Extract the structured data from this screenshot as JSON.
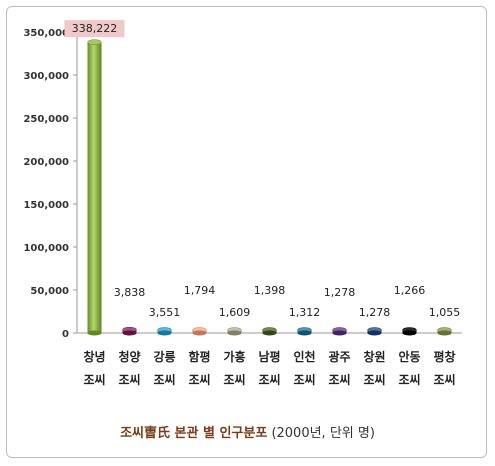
{
  "caption": {
    "main": "조씨曺氏 본관 별 인구분포",
    "sub": "(2000년, 단위 명)"
  },
  "chart_data": {
    "type": "bar",
    "categories": [
      [
        "창녕",
        "조씨"
      ],
      [
        "청양",
        "조씨"
      ],
      [
        "강릉",
        "조씨"
      ],
      [
        "함평",
        "조씨"
      ],
      [
        "가흥",
        "조씨"
      ],
      [
        "남평",
        "조씨"
      ],
      [
        "인천",
        "조씨"
      ],
      [
        "광주",
        "조씨"
      ],
      [
        "창원",
        "조씨"
      ],
      [
        "안동",
        "조씨"
      ],
      [
        "평창",
        "조씨"
      ]
    ],
    "values": [
      338222,
      3838,
      3551,
      1794,
      1609,
      1398,
      1312,
      1278,
      1278,
      1266,
      1055
    ],
    "value_labels": [
      "338,222",
      "3,838",
      "3,551",
      "1,794",
      "1,609",
      "1,398",
      "1,312",
      "1,278",
      "1,278",
      "1,266",
      "1,055"
    ],
    "yticks": [
      "0",
      "50,000",
      "100,000",
      "150,000",
      "200,000",
      "250,000",
      "300,000",
      "350,000"
    ],
    "ylim": [
      0,
      350000
    ],
    "bar_colors": [
      "#8bb04a",
      "#8a3a6a",
      "#3aa0c8",
      "#e8a080",
      "#a8a890",
      "#5a7040",
      "#3a7a9a",
      "#6a4a8a",
      "#3a5a8a",
      "#111111",
      "#8a9a5a"
    ],
    "highlight_label_color": "#f2c9c9",
    "grid": false,
    "legend": "none"
  }
}
